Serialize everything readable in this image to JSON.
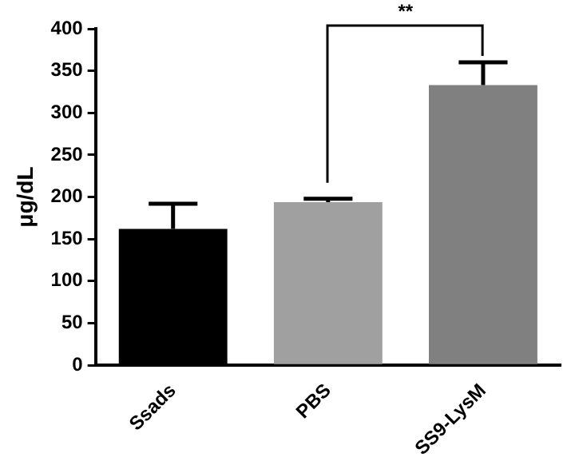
{
  "chart_data": {
    "type": "bar",
    "ylabel": "μg/dL",
    "categories": [
      "Ssads",
      "PBS",
      "SS9-LysM"
    ],
    "values": [
      162,
      194,
      333
    ],
    "colors": [
      "#000000",
      "#a0a0a0",
      "#808080"
    ],
    "errors": [
      [
        162,
        192
      ],
      [
        194,
        198
      ],
      [
        333,
        360
      ]
    ],
    "ylim": [
      0,
      400
    ],
    "yticks": [
      0,
      50,
      100,
      150,
      200,
      250,
      300,
      350,
      400
    ],
    "grid": false,
    "legend": false,
    "annotations": [
      "**"
    ]
  }
}
